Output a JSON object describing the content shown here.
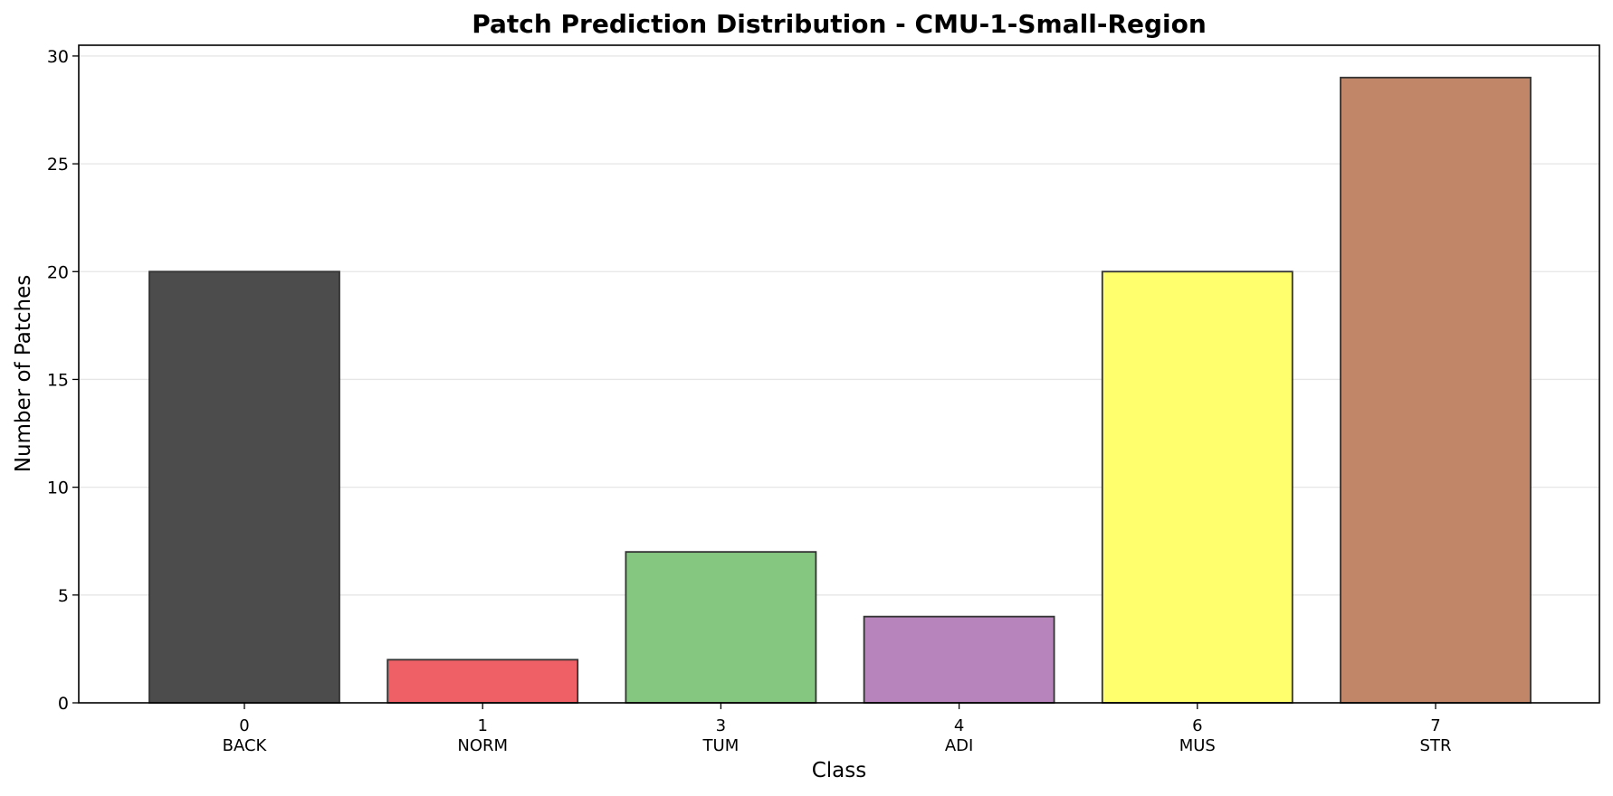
{
  "chart_data": {
    "type": "bar",
    "title": "Patch Prediction Distribution - CMU-1-Small-Region",
    "xlabel": "Class",
    "ylabel": "Number of Patches",
    "categories": [
      {
        "id": "0",
        "name": "BACK"
      },
      {
        "id": "1",
        "name": "NORM"
      },
      {
        "id": "3",
        "name": "TUM"
      },
      {
        "id": "4",
        "name": "ADI"
      },
      {
        "id": "6",
        "name": "MUS"
      },
      {
        "id": "7",
        "name": "STR"
      }
    ],
    "values": [
      20,
      2,
      7,
      4,
      20,
      29
    ],
    "colors": [
      "#4c4c4c",
      "#ee6066",
      "#85c780",
      "#b784bc",
      "#ffff6e",
      "#c18668"
    ],
    "bar_edge_color": "#333333",
    "ylim": [
      0,
      30.5
    ],
    "yticks": [
      0,
      5,
      10,
      15,
      20,
      25,
      30
    ],
    "grid": {
      "axis": "y",
      "color": "#e6e6e6"
    },
    "legend": "none"
  }
}
